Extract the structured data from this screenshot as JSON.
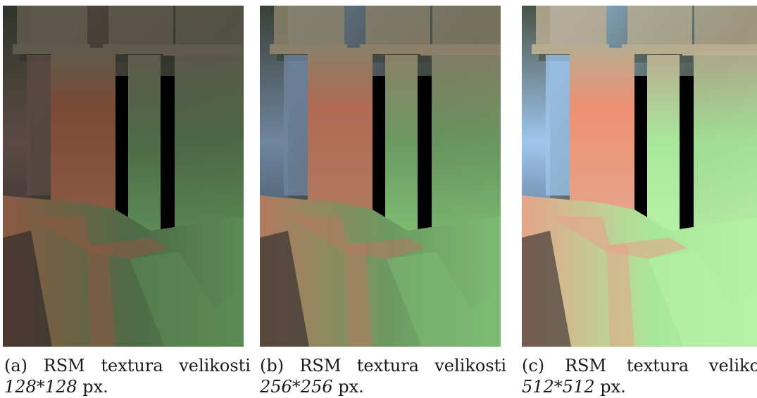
{
  "subfigures": [
    {
      "id": "a",
      "label": "(a)",
      "words": [
        "RSM",
        "textura",
        "velikosti"
      ],
      "size": "128*128",
      "unit": "px.",
      "colors": {
        "bg": "#2f352c",
        "left": "#5c4a44",
        "column_mid": "#7a4a36",
        "column_right": "#4d6b46",
        "floor_left": "#8a5a44",
        "floor_right": "#5c8a56",
        "top": "#5f5a4c"
      }
    },
    {
      "id": "b",
      "label": "(b)",
      "words": [
        "RSM",
        "textura",
        "velikosti"
      ],
      "size": "256*256",
      "unit": "px.",
      "colors": {
        "bg": "#3a4036",
        "left": "#6f86a0",
        "column_mid": "#b06a52",
        "column_right": "#6c9a62",
        "floor_left": "#b07a5e",
        "floor_right": "#7cbc72",
        "top": "#8a8068"
      }
    },
    {
      "id": "c",
      "label": "(c)",
      "words": [
        "RSM",
        "textura",
        "velikost"
      ],
      "size": "512*512",
      "unit": "px.",
      "colors": {
        "bg": "#4a5446",
        "left": "#9ec6ee",
        "column_mid": "#ee9072",
        "column_right": "#a8e89a",
        "floor_left": "#e6a48a",
        "floor_right": "#b6f2a6",
        "top": "#b8ac90"
      }
    }
  ]
}
